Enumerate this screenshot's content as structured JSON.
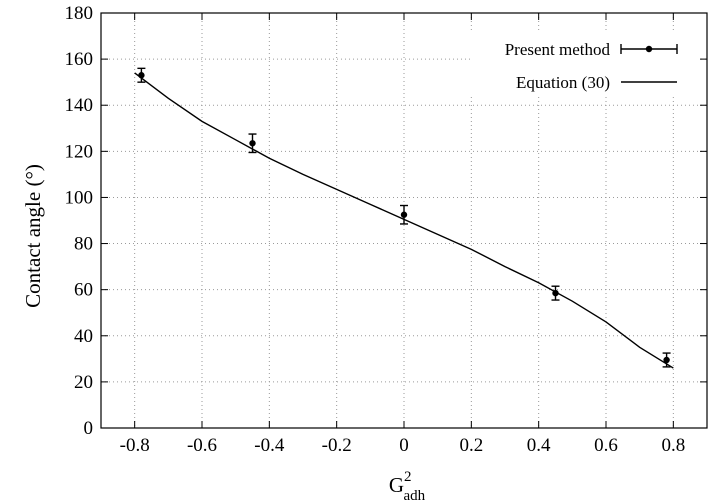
{
  "chart_data": {
    "type": "scatter",
    "title": "",
    "xlabel": "G",
    "xlabel_sup": "2",
    "xlabel_sub": "adh",
    "ylabel": "Contact angle (°)",
    "xlim": [
      -0.9,
      0.9
    ],
    "ylim": [
      0,
      180
    ],
    "xticks": [
      -0.8,
      -0.6,
      -0.4,
      -0.2,
      0,
      0.2,
      0.4,
      0.6,
      0.8
    ],
    "xtick_labels": [
      "-0.8",
      "-0.6",
      "-0.4",
      "-0.2",
      "0",
      "0.2",
      "0.4",
      "0.6",
      "0.8"
    ],
    "yticks": [
      0,
      20,
      40,
      60,
      80,
      100,
      120,
      140,
      160,
      180
    ],
    "ytick_labels": [
      "0",
      "20",
      "40",
      "60",
      "80",
      "100",
      "120",
      "140",
      "160",
      "180"
    ],
    "grid": true,
    "legend_position": "top-right",
    "series": [
      {
        "name": "Present method",
        "kind": "points-with-error-bars",
        "color": "#000000",
        "x": [
          -0.78,
          -0.45,
          0,
          0.45,
          0.78
        ],
        "y": [
          153,
          123.5,
          92.5,
          58.5,
          29.5
        ],
        "yerr": [
          3,
          4,
          4,
          3,
          3
        ]
      },
      {
        "name": "Equation (30)",
        "kind": "line",
        "color": "#000000",
        "x": [
          -0.8,
          -0.7,
          -0.6,
          -0.5,
          -0.4,
          -0.3,
          -0.2,
          -0.1,
          0,
          0.1,
          0.2,
          0.3,
          0.4,
          0.5,
          0.6,
          0.7,
          0.8
        ],
        "y": [
          154,
          143,
          133,
          125,
          117,
          110,
          103.5,
          97,
          90.5,
          84,
          77.5,
          70,
          63,
          55,
          46,
          35,
          26
        ]
      }
    ]
  }
}
